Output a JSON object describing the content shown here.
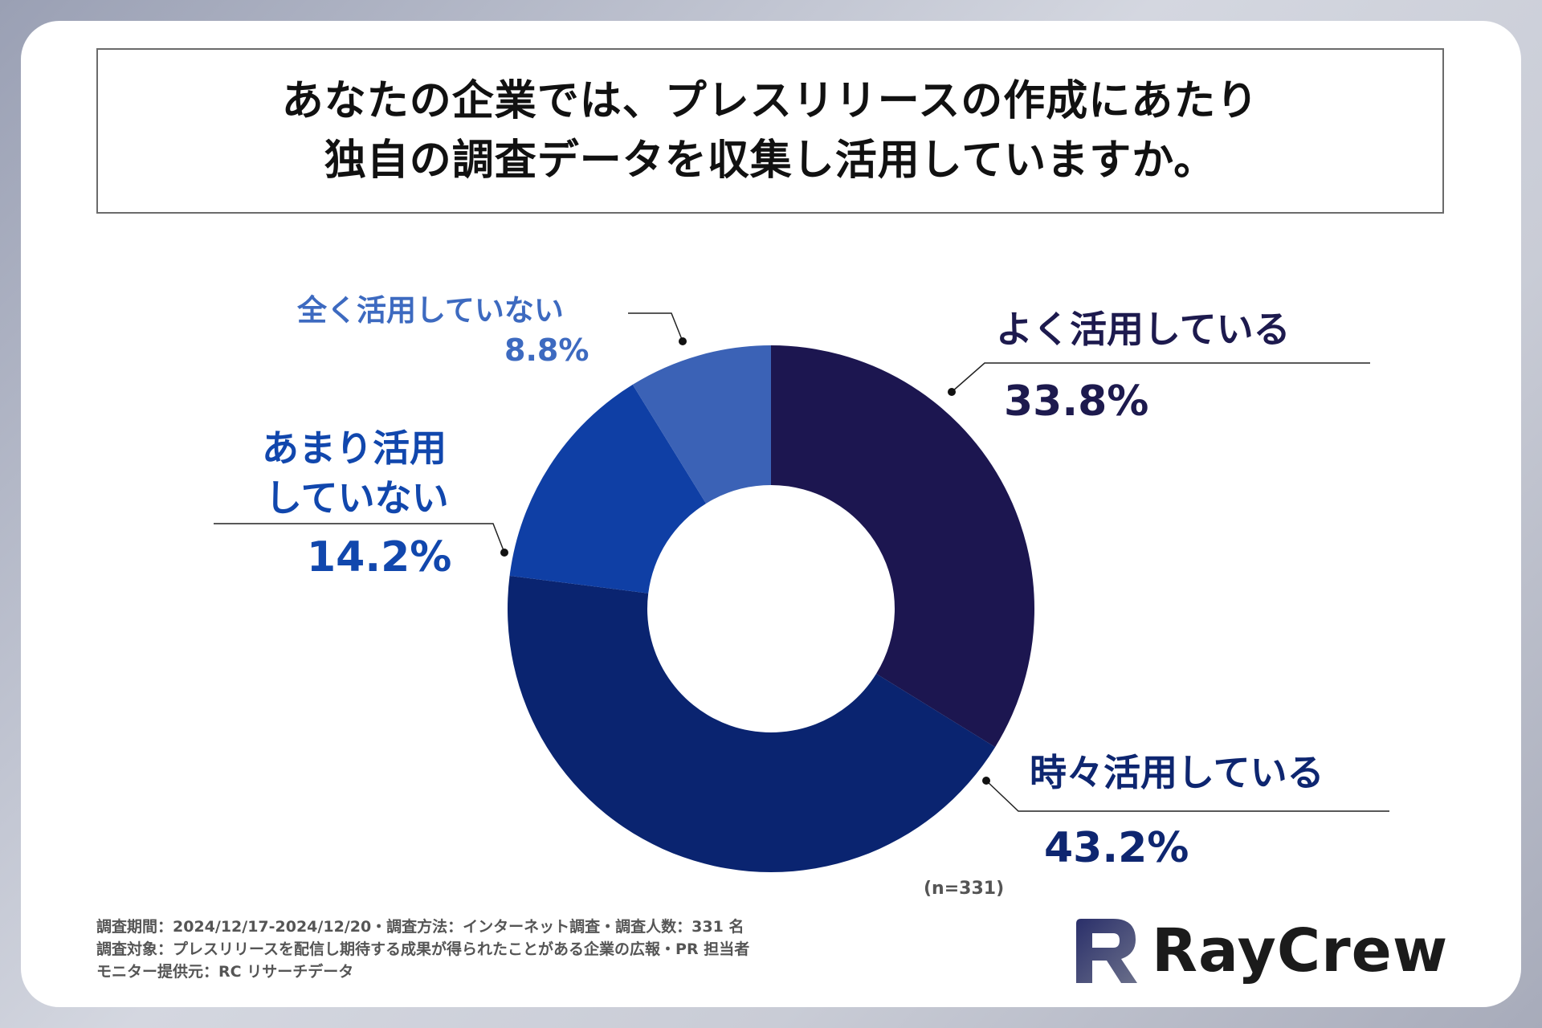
{
  "title": {
    "line1": "あなたの企業では、プレスリリースの作成にあたり",
    "line2": "独自の調査データを収集し活用していますか。"
  },
  "chart_data": {
    "type": "pie",
    "donut": true,
    "categories": [
      "よく活用している",
      "時々活用している",
      "あまり活用していない",
      "全く活用していない"
    ],
    "values": [
      33.8,
      43.2,
      14.2,
      8.8
    ],
    "value_labels": [
      "33.8%",
      "43.2%",
      "14.2%",
      "8.8%"
    ],
    "colors": [
      "#1c1650",
      "#0a2470",
      "#0f3fa5",
      "#3b62b6"
    ]
  },
  "labels": {
    "yoku": "よく活用している",
    "yoku_pct": "33.8%",
    "tokidoki": "時々活用している",
    "tokidoki_pct": "43.2%",
    "amari_line1": "あまり活用",
    "amari_line2": "していない",
    "amari_pct": "14.2%",
    "mattaku": "全く活用していない",
    "mattaku_pct": "8.8%"
  },
  "n_note": "(n=331)",
  "footnotes": [
    "調査期間：2024/12/17-2024/12/20・調査方法：インターネット調査・調査人数：331 名",
    "調査対象：プレスリリースを配信し期待する成果が得られたことがある企業の広報・PR 担当者",
    "モニター提供元：RC リサーチデータ"
  ],
  "logo": {
    "text": "RayCrew"
  }
}
